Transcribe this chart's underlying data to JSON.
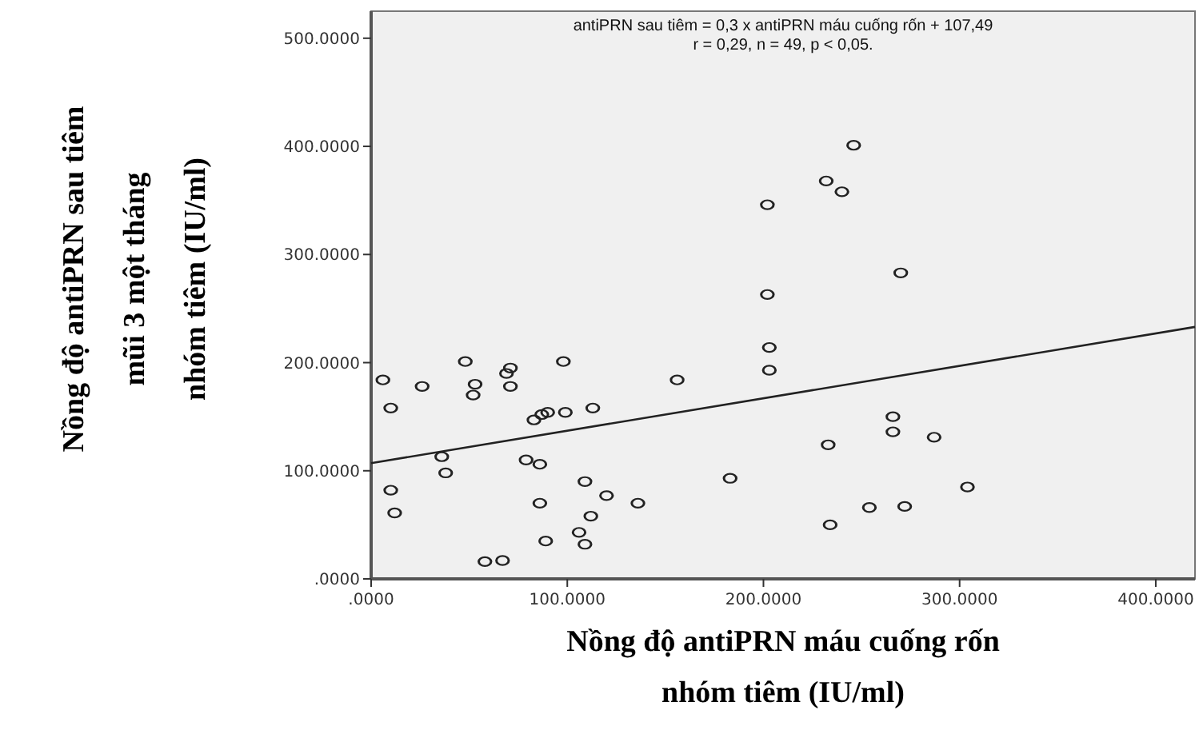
{
  "chart_data": {
    "type": "scatter",
    "xlabel": "Nồng độ antiPRN máu cuống rốn\nnhóm tiêm (IU/ml)",
    "ylabel": "Nồng độ antiPRN sau tiêm\nmũi 3 một tháng\nnhóm tiêm (IU/ml)",
    "annotations": [
      "antiPRN sau tiêm = 0,3 x antiPRN máu cuống rốn + 107,49",
      "r = 0,29, n = 49, p < 0,05."
    ],
    "xlim": [
      0,
      420
    ],
    "ylim": [
      0,
      525
    ],
    "xticks": [
      {
        "value": 0,
        "label": ".0000"
      },
      {
        "value": 100,
        "label": "100.0000"
      },
      {
        "value": 200,
        "label": "200.0000"
      },
      {
        "value": 300,
        "label": "300.0000"
      },
      {
        "value": 400,
        "label": "400.0000"
      }
    ],
    "yticks": [
      {
        "value": 0,
        "label": ".0000"
      },
      {
        "value": 100,
        "label": "100.0000"
      },
      {
        "value": 200,
        "label": "200.0000"
      },
      {
        "value": 300,
        "label": "300.0000"
      },
      {
        "value": 400,
        "label": "400.0000"
      },
      {
        "value": 500,
        "label": "500.0000"
      }
    ],
    "grid": false,
    "series": [
      {
        "type": "scatter",
        "marker": "circle",
        "color": "#222222",
        "x": [
          6,
          10,
          26,
          48,
          53,
          52,
          69,
          71,
          71,
          98,
          83,
          87,
          90,
          99,
          113,
          156,
          36,
          38,
          79,
          86,
          10,
          12,
          86,
          109,
          120,
          136,
          112,
          106,
          109,
          89,
          58,
          67,
          183,
          246,
          232,
          240,
          202,
          270,
          202,
          203,
          203,
          266,
          266,
          287,
          233,
          304,
          254,
          272,
          234
        ],
        "values": [
          184,
          158,
          178,
          201,
          180,
          170,
          190,
          195,
          178,
          201,
          147,
          152,
          154,
          154,
          158,
          184,
          113,
          98,
          110,
          106,
          82,
          61,
          70,
          90,
          77,
          70,
          58,
          43,
          32,
          35,
          16,
          17,
          93,
          401,
          368,
          358,
          346,
          283,
          263,
          214,
          193,
          150,
          136,
          131,
          124,
          85,
          66,
          67,
          50
        ]
      },
      {
        "type": "line",
        "color": "#222222",
        "x": [
          0,
          420
        ],
        "values": [
          107,
          233
        ]
      }
    ]
  }
}
